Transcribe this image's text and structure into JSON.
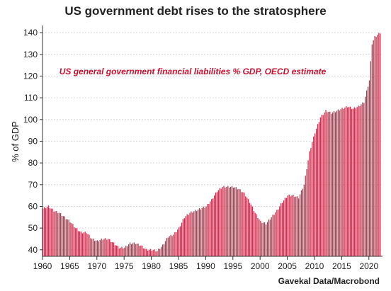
{
  "title": "US government debt rises to the stratosphere",
  "source": "Gavekal Data/Macrobond",
  "chart_data": {
    "type": "bar",
    "title": "US government debt rises to the stratosphere",
    "annotation": "US general government financial liabilities % GDP, OECD estimate",
    "xlabel": "",
    "ylabel": "% of GDP",
    "ylim": [
      37,
      142
    ],
    "xlim": [
      1960,
      2022.5
    ],
    "yticks": [
      40,
      50,
      60,
      70,
      80,
      90,
      100,
      110,
      120,
      130,
      140
    ],
    "xticks": [
      1960,
      1965,
      1970,
      1975,
      1980,
      1985,
      1990,
      1995,
      2000,
      2005,
      2010,
      2015,
      2020
    ],
    "grid": true,
    "bar_color": "#c8344f",
    "annotation_color": "#c8102e",
    "frequency": "quarterly",
    "series": [
      {
        "name": "US general government financial liabilities % GDP, OECD estimate",
        "points": [
          [
            1960,
            59
          ],
          [
            1961,
            60
          ],
          [
            1962,
            58
          ],
          [
            1963,
            57
          ],
          [
            1964,
            55
          ],
          [
            1965,
            53
          ],
          [
            1966,
            50
          ],
          [
            1967,
            48
          ],
          [
            1968,
            48
          ],
          [
            1969,
            45
          ],
          [
            1970,
            44
          ],
          [
            1971,
            45
          ],
          [
            1972,
            45
          ],
          [
            1973,
            43
          ],
          [
            1974,
            41
          ],
          [
            1975,
            41
          ],
          [
            1976,
            43
          ],
          [
            1977,
            43
          ],
          [
            1978,
            42
          ],
          [
            1979,
            40
          ],
          [
            1980,
            40
          ],
          [
            1981,
            39.5
          ],
          [
            1982,
            42
          ],
          [
            1983,
            46
          ],
          [
            1984,
            47
          ],
          [
            1985,
            50
          ],
          [
            1986,
            55
          ],
          [
            1987,
            57
          ],
          [
            1988,
            58
          ],
          [
            1989,
            59
          ],
          [
            1990,
            60
          ],
          [
            1991,
            63
          ],
          [
            1992,
            67
          ],
          [
            1993,
            69
          ],
          [
            1994,
            69
          ],
          [
            1995,
            69
          ],
          [
            1996,
            68
          ],
          [
            1997,
            66
          ],
          [
            1998,
            62
          ],
          [
            1999,
            57
          ],
          [
            2000,
            53
          ],
          [
            2001,
            52
          ],
          [
            2002,
            55
          ],
          [
            2003,
            58
          ],
          [
            2004,
            62
          ],
          [
            2005,
            65
          ],
          [
            2006,
            65
          ],
          [
            2007,
            64
          ],
          [
            2008,
            70
          ],
          [
            2009,
            85
          ],
          [
            2010,
            94
          ],
          [
            2011,
            101
          ],
          [
            2012,
            104
          ],
          [
            2013,
            103
          ],
          [
            2014,
            104
          ],
          [
            2015,
            105
          ],
          [
            2016,
            106
          ],
          [
            2017,
            105
          ],
          [
            2018,
            106
          ],
          [
            2019,
            108
          ],
          [
            2020,
            118
          ],
          [
            2020.5,
            135
          ],
          [
            2021,
            138
          ],
          [
            2021.5,
            139
          ],
          [
            2022,
            140
          ]
        ]
      }
    ]
  }
}
